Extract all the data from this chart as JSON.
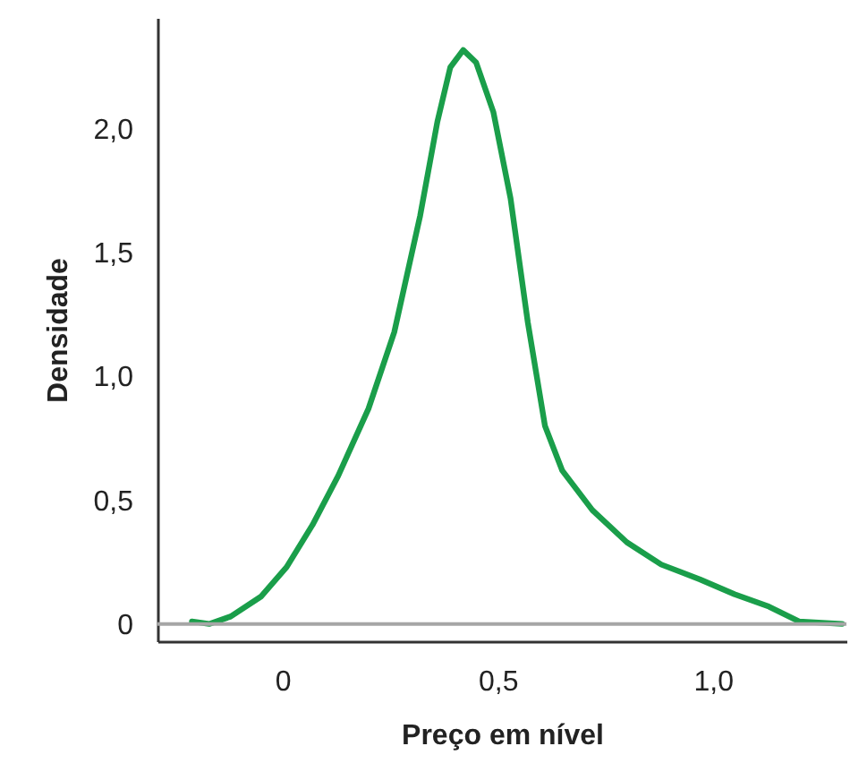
{
  "chart_data": {
    "type": "line",
    "xlabel": "Preço em nível",
    "ylabel": "Densidade",
    "x": [
      -0.21,
      -0.17,
      -0.12,
      -0.05,
      0.01,
      0.07,
      0.13,
      0.2,
      0.26,
      0.32,
      0.36,
      0.39,
      0.42,
      0.45,
      0.49,
      0.53,
      0.57,
      0.61,
      0.65,
      0.72,
      0.8,
      0.88,
      0.97,
      1.05,
      1.13,
      1.2,
      1.3
    ],
    "series": [
      {
        "color": "#1a9e4a",
        "values": [
          0.01,
          0.0,
          0.03,
          0.11,
          0.23,
          0.4,
          0.6,
          0.87,
          1.18,
          1.65,
          2.03,
          2.25,
          2.32,
          2.27,
          2.07,
          1.72,
          1.22,
          0.8,
          0.62,
          0.46,
          0.33,
          0.24,
          0.18,
          0.12,
          0.07,
          0.01,
          0.0
        ]
      }
    ],
    "xlim": [
      -0.29,
      1.31
    ],
    "ylim": [
      -0.07,
      2.45
    ],
    "xticks": [
      0,
      {
        "value": 0.5,
        "label": "0,5"
      },
      {
        "value": 1,
        "label": "1,0"
      }
    ],
    "yticks": [
      0,
      {
        "value": 0.5,
        "label": "0,5"
      },
      {
        "value": 1,
        "label": "1,0"
      },
      {
        "value": 1.5,
        "label": "1,5"
      },
      {
        "value": 2,
        "label": "2,0"
      }
    ],
    "ref_lines": [
      {
        "axis": "y",
        "value": 0,
        "color": "#a6a6a6"
      }
    ],
    "grid": false,
    "marker": "none",
    "line_style": "solid"
  }
}
